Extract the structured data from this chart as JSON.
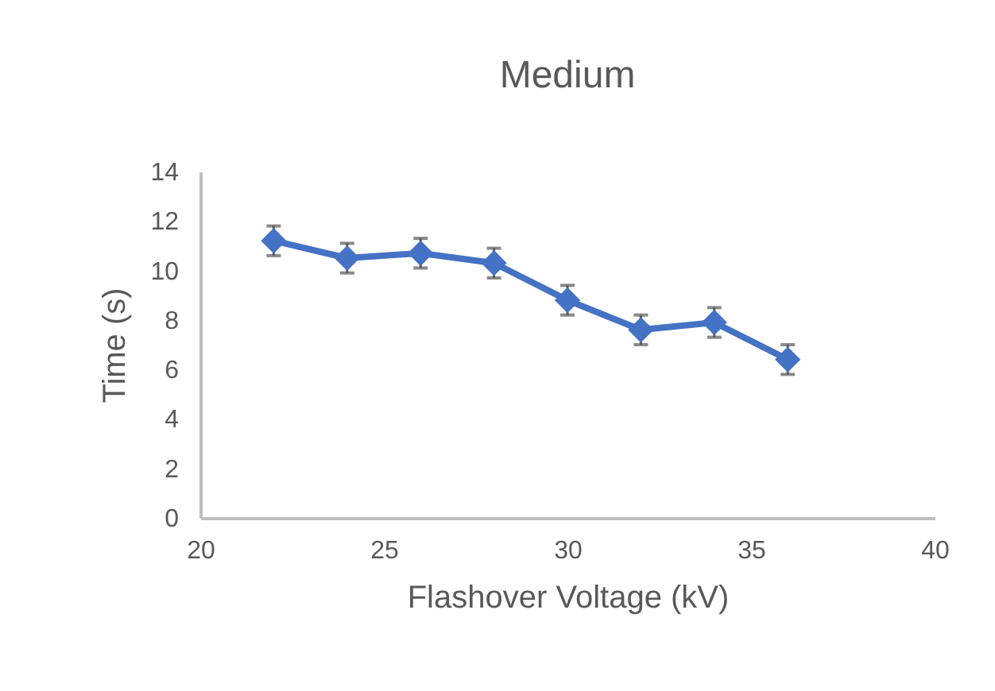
{
  "chart_data": {
    "type": "line",
    "title": "Medium",
    "xlabel": "Flashover Voltage (kV)",
    "ylabel": "Time (s)",
    "x": [
      22,
      24,
      26,
      28,
      30,
      32,
      34,
      36
    ],
    "series": [
      {
        "color": "#4472c4",
        "values": [
          11.2,
          10.5,
          10.7,
          10.3,
          8.8,
          7.6,
          7.9,
          6.4
        ],
        "errors": [
          0.6,
          0.6,
          0.6,
          0.6,
          0.6,
          0.6,
          0.6,
          0.6
        ]
      }
    ],
    "xlim": [
      20,
      40
    ],
    "xticks": [
      20,
      25,
      30,
      35,
      40
    ],
    "ylim": [
      0,
      14
    ],
    "yticks": [
      0,
      2,
      4,
      6,
      8,
      10,
      12,
      14
    ],
    "marker": "diamond",
    "line_style": "solid"
  }
}
